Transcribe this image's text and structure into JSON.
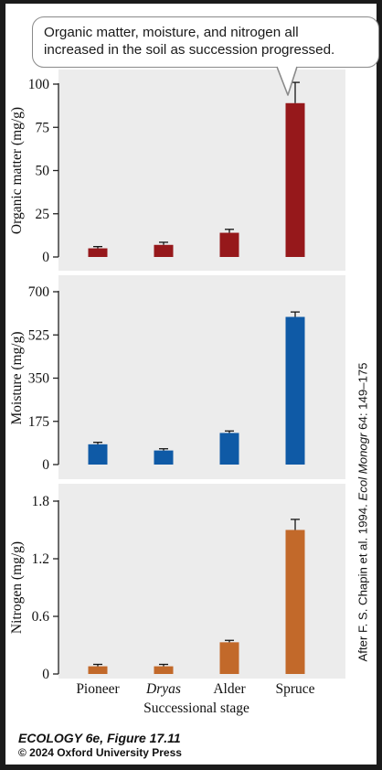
{
  "callout": {
    "line1": "Organic matter, moisture, and nitrogen all",
    "line2": "increased in the soil as succession progressed."
  },
  "citation": {
    "prefix": "After F. S. Chapin et al. 1994. ",
    "journal": "Ecol Monogr",
    "suffix": " 64: 149–175"
  },
  "footer": {
    "title": "ECOLOGY 6e",
    "figure": ", Figure 17.11",
    "copyright": "© 2024 Oxford University Press"
  },
  "colors": {
    "background": "#1b1b1b",
    "panel": "#ececec",
    "organic_bar": "#96181b",
    "moisture_bar": "#0f5aa6",
    "nitrogen_bar": "#c2692a",
    "error_bar": "#141414"
  },
  "chart_data": [
    {
      "type": "bar",
      "ylabel": "Organic matter (mg/g)",
      "ylim": [
        0,
        100
      ],
      "yticks": [
        "0",
        "25",
        "50",
        "75",
        "100"
      ],
      "yticks_values": [
        0,
        25,
        50,
        75,
        100
      ],
      "categories": [
        "Pioneer",
        "Dryas",
        "Alder",
        "Spruce"
      ],
      "values": [
        5,
        7,
        14,
        89
      ],
      "errors": [
        1,
        1.5,
        2,
        12
      ],
      "color": "#96181b"
    },
    {
      "type": "bar",
      "ylabel": "Moisture (mg/g)",
      "ylim": [
        0,
        700
      ],
      "yticks": [
        "0",
        "175",
        "350",
        "525",
        "700"
      ],
      "yticks_values": [
        0,
        175,
        350,
        525,
        700
      ],
      "categories": [
        "Pioneer",
        "Dryas",
        "Alder",
        "Spruce"
      ],
      "values": [
        82,
        57,
        128,
        598
      ],
      "errors": [
        8,
        7,
        8,
        20
      ],
      "color": "#0f5aa6"
    },
    {
      "type": "bar",
      "ylabel": "Nitrogen (mg/g)",
      "ylim": [
        0,
        1.8
      ],
      "yticks": [
        "0",
        "0.6",
        "1.2",
        "1.8"
      ],
      "yticks_values": [
        0,
        0.6,
        1.2,
        1.8
      ],
      "categories": [
        "Pioneer",
        "Dryas",
        "Alder",
        "Spruce"
      ],
      "values": [
        0.08,
        0.08,
        0.33,
        1.5
      ],
      "errors": [
        0.02,
        0.02,
        0.02,
        0.11
      ],
      "color": "#c2692a",
      "xlabel": "Successional stage",
      "italic_categories": [
        "Dryas"
      ]
    }
  ]
}
